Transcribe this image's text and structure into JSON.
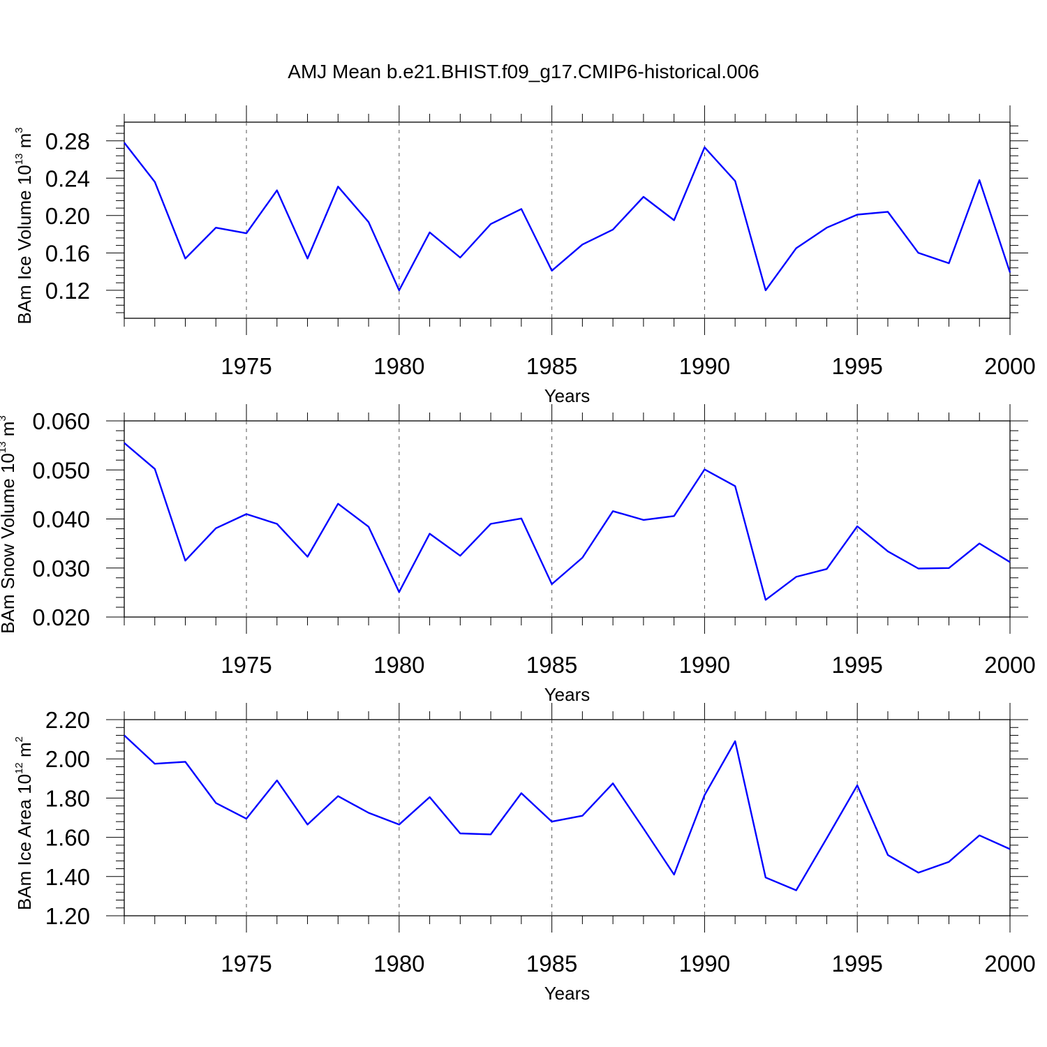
{
  "chart_data": {
    "title": "AMJ Mean b.e21.BHIST.f09_g17.CMIP6-historical.006",
    "type": "line",
    "line_color": "#0000ff",
    "grid": "dashed vertical lines at major x ticks",
    "x": [
      1971,
      1972,
      1973,
      1974,
      1975,
      1976,
      1977,
      1978,
      1979,
      1980,
      1981,
      1982,
      1983,
      1984,
      1985,
      1986,
      1987,
      1988,
      1989,
      1990,
      1991,
      1992,
      1993,
      1994,
      1995,
      1996,
      1997,
      1998,
      1999,
      2000
    ],
    "xlim": [
      1971,
      2000
    ],
    "xticks": [
      1975,
      1980,
      1985,
      1990,
      1995,
      2000
    ],
    "panels": [
      {
        "ylabel_text": "BAm Ice Volume 10",
        "ylabel_exp": "13",
        "ylabel_unit": " m",
        "ylabel_unit_exp": "3",
        "xlabel": "Years",
        "ylim": [
          0.09,
          0.3
        ],
        "yticks": [
          0.12,
          0.16,
          0.2,
          0.24,
          0.28
        ],
        "ytick_labels": [
          "0.12",
          "0.16",
          "0.20",
          "0.24",
          "0.28"
        ],
        "values": [
          0.278,
          0.236,
          0.154,
          0.187,
          0.181,
          0.227,
          0.154,
          0.231,
          0.193,
          0.12,
          0.182,
          0.155,
          0.191,
          0.207,
          0.141,
          0.169,
          0.185,
          0.22,
          0.195,
          0.273,
          0.237,
          0.12,
          0.165,
          0.187,
          0.201,
          0.204,
          0.16,
          0.149,
          0.238,
          0.139
        ]
      },
      {
        "ylabel_text": "BAm Snow Volume 10",
        "ylabel_exp": "13",
        "ylabel_unit": " m",
        "ylabel_unit_exp": "3",
        "xlabel": "Years",
        "ylim": [
          0.02,
          0.06
        ],
        "yticks": [
          0.02,
          0.03,
          0.04,
          0.05,
          0.06
        ],
        "ytick_labels": [
          "0.020",
          "0.030",
          "0.040",
          "0.050",
          "0.060"
        ],
        "values": [
          0.0555,
          0.0502,
          0.0315,
          0.0381,
          0.041,
          0.039,
          0.0323,
          0.0431,
          0.0384,
          0.0251,
          0.037,
          0.0325,
          0.039,
          0.0401,
          0.0267,
          0.0321,
          0.0416,
          0.0398,
          0.0406,
          0.0501,
          0.0467,
          0.0235,
          0.0282,
          0.0298,
          0.0385,
          0.0334,
          0.0299,
          0.03,
          0.035,
          0.0312
        ]
      },
      {
        "ylabel_text": "BAm Ice Area 10",
        "ylabel_exp": "12",
        "ylabel_unit": " m",
        "ylabel_unit_exp": "2",
        "xlabel": "Years",
        "ylim": [
          1.2,
          2.2
        ],
        "yticks": [
          1.2,
          1.4,
          1.6,
          1.8,
          2.0,
          2.2
        ],
        "ytick_labels": [
          "1.20",
          "1.40",
          "1.60",
          "1.80",
          "2.00",
          "2.20"
        ],
        "values": [
          2.12,
          1.975,
          1.985,
          1.775,
          1.695,
          1.89,
          1.665,
          1.81,
          1.725,
          1.665,
          1.805,
          1.62,
          1.615,
          1.825,
          1.68,
          1.71,
          1.875,
          1.645,
          1.41,
          1.815,
          2.09,
          1.395,
          1.33,
          1.595,
          1.865,
          1.51,
          1.42,
          1.475,
          1.61,
          1.54
        ]
      }
    ]
  }
}
